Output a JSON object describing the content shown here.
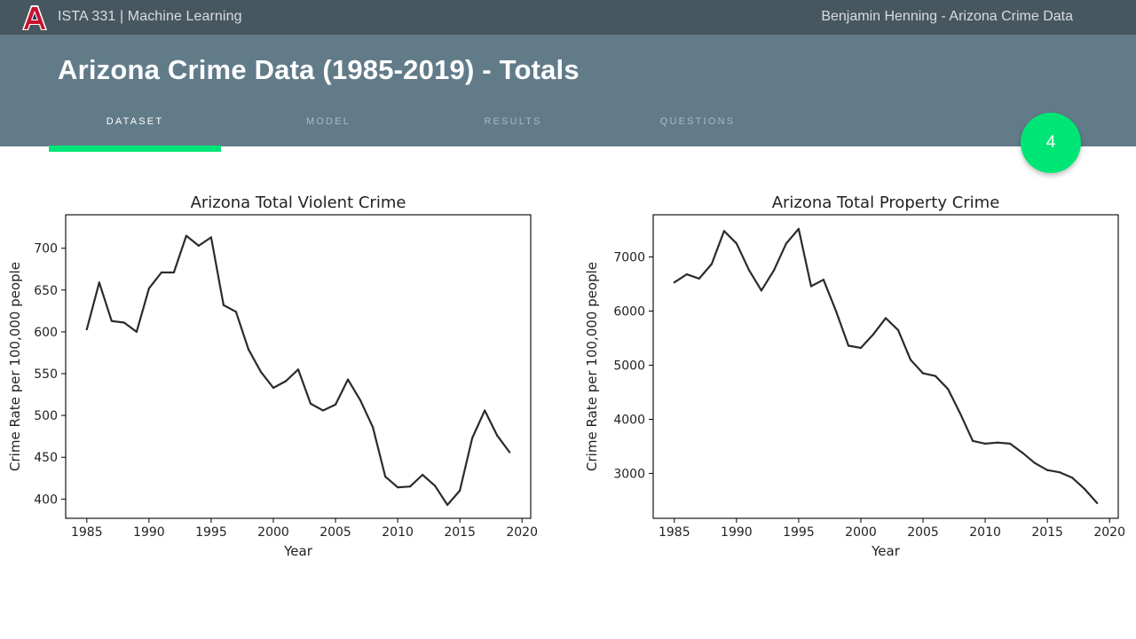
{
  "topbar": {
    "logo_label": "A",
    "course": "ISTA 331 | Machine Learning",
    "author": "Benjamin Henning - Arizona Crime Data"
  },
  "header": {
    "title": "Arizona Crime Data (1985-2019) - Totals",
    "tabs": [
      "DATASET",
      "MODEL",
      "RESULTS",
      "QUESTIONS"
    ],
    "active_tab": "DATASET"
  },
  "page_number": "4",
  "colors": {
    "topbar": "#47575f",
    "header": "#617b89",
    "accent": "#00e676"
  },
  "chart_data": [
    {
      "type": "line",
      "title": "Arizona Total Violent Crime",
      "xlabel": "Year",
      "ylabel": "Crime Rate per 100,000 people",
      "xlim": [
        1983.3,
        2020.7
      ],
      "ylim": [
        377,
        740
      ],
      "xticks": [
        1985,
        1990,
        1995,
        2000,
        2005,
        2010,
        2015,
        2020
      ],
      "yticks": [
        400,
        450,
        500,
        550,
        600,
        650,
        700
      ],
      "x": [
        1985,
        1986,
        1987,
        1988,
        1989,
        1990,
        1991,
        1992,
        1993,
        1994,
        1995,
        1996,
        1997,
        1998,
        1999,
        2000,
        2001,
        2002,
        2003,
        2004,
        2005,
        2006,
        2007,
        2008,
        2009,
        2010,
        2011,
        2012,
        2013,
        2014,
        2015,
        2016,
        2017,
        2018,
        2019
      ],
      "y": [
        603,
        659,
        613,
        611,
        600,
        652,
        671,
        671,
        715,
        703,
        713,
        632,
        624,
        579,
        552,
        533,
        541,
        555,
        514,
        506,
        513,
        543,
        518,
        486,
        427,
        414,
        415,
        429,
        416,
        393,
        410,
        473,
        506,
        476,
        456
      ],
      "grid": false
    },
    {
      "type": "line",
      "title": "Arizona Total Property Crime",
      "xlabel": "Year",
      "ylabel": "Crime Rate per 100,000 people",
      "xlim": [
        1983.3,
        2020.7
      ],
      "ylim": [
        2170,
        7780
      ],
      "xticks": [
        1985,
        1990,
        1995,
        2000,
        2005,
        2010,
        2015,
        2020
      ],
      "yticks": [
        3000,
        4000,
        5000,
        6000,
        7000
      ],
      "x": [
        1985,
        1986,
        1987,
        1988,
        1989,
        1990,
        1991,
        1992,
        1993,
        1994,
        1995,
        1996,
        1997,
        1998,
        1999,
        2000,
        2001,
        2002,
        2003,
        2004,
        2005,
        2006,
        2007,
        2008,
        2009,
        2010,
        2011,
        2012,
        2013,
        2014,
        2015,
        2016,
        2017,
        2018,
        2019
      ],
      "y": [
        6530,
        6680,
        6600,
        6870,
        7480,
        7250,
        6760,
        6380,
        6750,
        7250,
        7520,
        6460,
        6580,
        6000,
        5360,
        5320,
        5570,
        5870,
        5650,
        5100,
        4850,
        4800,
        4560,
        4100,
        3600,
        3550,
        3570,
        3550,
        3380,
        3190,
        3060,
        3020,
        2920,
        2710,
        2450
      ],
      "grid": false
    }
  ]
}
